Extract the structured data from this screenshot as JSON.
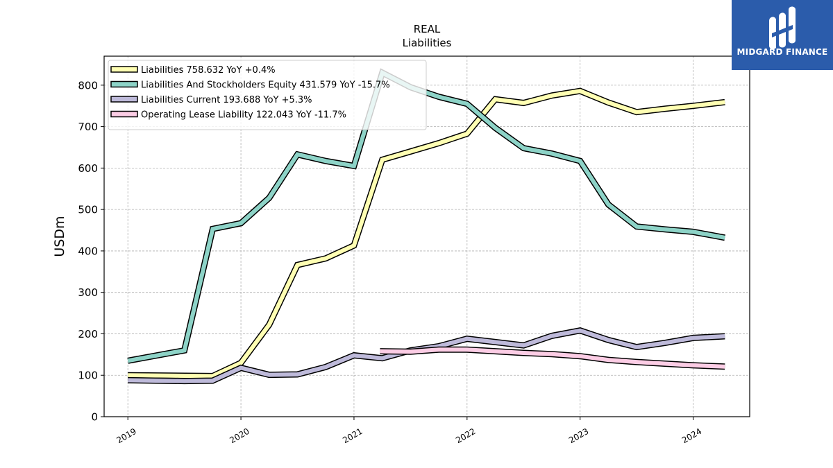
{
  "logo": {
    "text": "MIDGARD FINANCE"
  },
  "chart_data": {
    "type": "line",
    "title": "REAL",
    "subtitle": "Liabilities",
    "ylabel": "USDm",
    "xlabel": "",
    "ylim": [
      0,
      870
    ],
    "xlim": [
      2018.79,
      2024.5
    ],
    "yticks": [
      0,
      100,
      200,
      300,
      400,
      500,
      600,
      700,
      800
    ],
    "xticks": [
      2019,
      2020,
      2021,
      2022,
      2023,
      2024
    ],
    "xtick_labels": [
      "2019",
      "2020",
      "2021",
      "2022",
      "2023",
      "2024"
    ],
    "grid": true,
    "legend_position": "top-left",
    "series": [
      {
        "name": "Liabilities",
        "legend_label": "Liabilities  758.632 YoY +0.4%",
        "color": "#ffffb3",
        "x": [
          2019.0,
          2019.75,
          2020.0,
          2020.25,
          2020.5,
          2020.75,
          2021.0,
          2021.25,
          2021.5,
          2021.75,
          2022.0,
          2022.25,
          2022.5,
          2022.75,
          2023.0,
          2023.25,
          2023.5,
          2023.75,
          2024.0,
          2024.28
        ],
        "values": [
          100,
          98,
          130,
          222,
          366,
          382,
          413,
          620,
          640,
          660,
          683,
          766,
          757,
          775,
          786,
          758,
          735,
          743,
          750,
          759
        ]
      },
      {
        "name": "Liabilities And Stockholders Equity",
        "legend_label": "Liabilities And Stockholders Equity  431.579 YoY -15.7%",
        "color": "#8dd3c7",
        "x": [
          2019.0,
          2019.5,
          2019.75,
          2020.0,
          2020.25,
          2020.5,
          2020.75,
          2021.0,
          2021.25,
          2021.5,
          2021.75,
          2022.0,
          2022.25,
          2022.5,
          2022.75,
          2023.0,
          2023.25,
          2023.5,
          2023.75,
          2024.0,
          2024.28
        ],
        "values": [
          135,
          160,
          453,
          467,
          528,
          633,
          617,
          605,
          830,
          795,
          772,
          755,
          697,
          648,
          635,
          617,
          512,
          459,
          452,
          446,
          432
        ]
      },
      {
        "name": "Liabilities Current",
        "legend_label": "Liabilities Current  193.688 YoY +5.3%",
        "color": "#bebada",
        "x": [
          2019.0,
          2019.5,
          2019.75,
          2020.0,
          2020.25,
          2020.5,
          2020.75,
          2021.0,
          2021.25,
          2021.5,
          2021.75,
          2022.0,
          2022.25,
          2022.5,
          2022.75,
          2023.0,
          2023.25,
          2023.5,
          2023.75,
          2024.0,
          2024.28
        ],
        "values": [
          88,
          86,
          87,
          118,
          101,
          102,
          120,
          148,
          141,
          160,
          170,
          188,
          180,
          172,
          195,
          208,
          185,
          168,
          178,
          190,
          194
        ]
      },
      {
        "name": "Operating Lease Liability",
        "legend_label": "Operating Lease Liability  122.043 YoY -11.7%",
        "color": "#fccde5",
        "x": [
          2021.23,
          2021.5,
          2021.75,
          2022.0,
          2022.25,
          2022.5,
          2022.75,
          2023.0,
          2023.25,
          2023.5,
          2023.75,
          2024.0,
          2024.28
        ],
        "values": [
          158,
          157,
          162,
          162,
          158,
          154,
          151,
          146,
          137,
          132,
          128,
          124,
          121
        ]
      }
    ]
  }
}
